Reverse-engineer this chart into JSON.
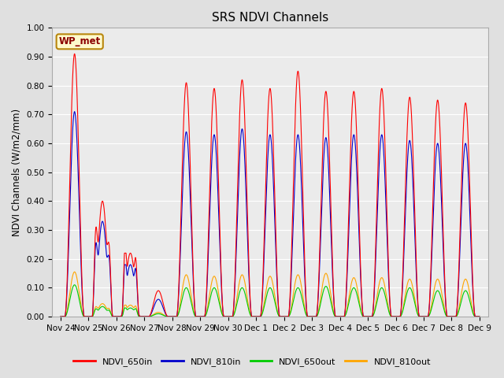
{
  "title": "SRS NDVI Channels",
  "ylabel": "NDVI Channels (W/m2/mm)",
  "ylim": [
    0.0,
    1.0
  ],
  "yticks": [
    0.0,
    0.1,
    0.2,
    0.3,
    0.4,
    0.5,
    0.6,
    0.7,
    0.8,
    0.9,
    1.0
  ],
  "annotation_text": "WP_met",
  "annotation_color": "#8B0000",
  "annotation_bg": "#FFFACD",
  "annotation_border": "#B8860B",
  "colors": {
    "NDVI_650in": "#FF0000",
    "NDVI_810in": "#0000CC",
    "NDVI_650out": "#00CC00",
    "NDVI_810out": "#FFA500"
  },
  "legend_labels": [
    "NDVI_650in",
    "NDVI_810in",
    "NDVI_650out",
    "NDVI_810out"
  ],
  "fig_bg_color": "#E0E0E0",
  "ax_bg_color": "#EBEBEB",
  "title_fontsize": 11,
  "tick_label_fontsize": 7.5,
  "daily_peaks": {
    "0": {
      "NDVI_650in": 0.91,
      "NDVI_810in": 0.71,
      "NDVI_650out": 0.11,
      "NDVI_810out": 0.155
    },
    "1": {
      "NDVI_650in": 0.4,
      "NDVI_810in": 0.33,
      "NDVI_650out": 0.035,
      "NDVI_810out": 0.045
    },
    "2": {
      "NDVI_650in": 0.22,
      "NDVI_810in": 0.18,
      "NDVI_650out": 0.03,
      "NDVI_810out": 0.04
    },
    "3": {
      "NDVI_650in": 0.09,
      "NDVI_810in": 0.06,
      "NDVI_650out": 0.01,
      "NDVI_810out": 0.015
    },
    "4": {
      "NDVI_650in": 0.81,
      "NDVI_810in": 0.64,
      "NDVI_650out": 0.1,
      "NDVI_810out": 0.145
    },
    "5": {
      "NDVI_650in": 0.79,
      "NDVI_810in": 0.63,
      "NDVI_650out": 0.1,
      "NDVI_810out": 0.14
    },
    "6": {
      "NDVI_650in": 0.82,
      "NDVI_810in": 0.65,
      "NDVI_650out": 0.1,
      "NDVI_810out": 0.145
    },
    "7": {
      "NDVI_650in": 0.79,
      "NDVI_810in": 0.63,
      "NDVI_650out": 0.1,
      "NDVI_810out": 0.14
    },
    "8": {
      "NDVI_650in": 0.85,
      "NDVI_810in": 0.63,
      "NDVI_650out": 0.1,
      "NDVI_810out": 0.145
    },
    "9": {
      "NDVI_650in": 0.78,
      "NDVI_810in": 0.62,
      "NDVI_650out": 0.105,
      "NDVI_810out": 0.15
    },
    "10": {
      "NDVI_650in": 0.78,
      "NDVI_810in": 0.63,
      "NDVI_650out": 0.1,
      "NDVI_810out": 0.135
    },
    "11": {
      "NDVI_650in": 0.79,
      "NDVI_810in": 0.63,
      "NDVI_650out": 0.1,
      "NDVI_810out": 0.135
    },
    "12": {
      "NDVI_650in": 0.76,
      "NDVI_810in": 0.61,
      "NDVI_650out": 0.1,
      "NDVI_810out": 0.13
    },
    "13": {
      "NDVI_650in": 0.75,
      "NDVI_810in": 0.6,
      "NDVI_650out": 0.09,
      "NDVI_810out": 0.13
    },
    "14": {
      "NDVI_650in": 0.74,
      "NDVI_810in": 0.6,
      "NDVI_650out": 0.09,
      "NDVI_810out": 0.13
    }
  },
  "xtick_labels": [
    "Nov 24",
    "Nov 25",
    "Nov 26",
    "Nov 27",
    "Nov 28",
    "Nov 29",
    "Nov 30",
    "Dec 1",
    "Dec 2",
    "Dec 3",
    "Dec 4",
    "Dec 5",
    "Dec 6",
    "Dec 7",
    "Dec 8",
    "Dec 9"
  ]
}
